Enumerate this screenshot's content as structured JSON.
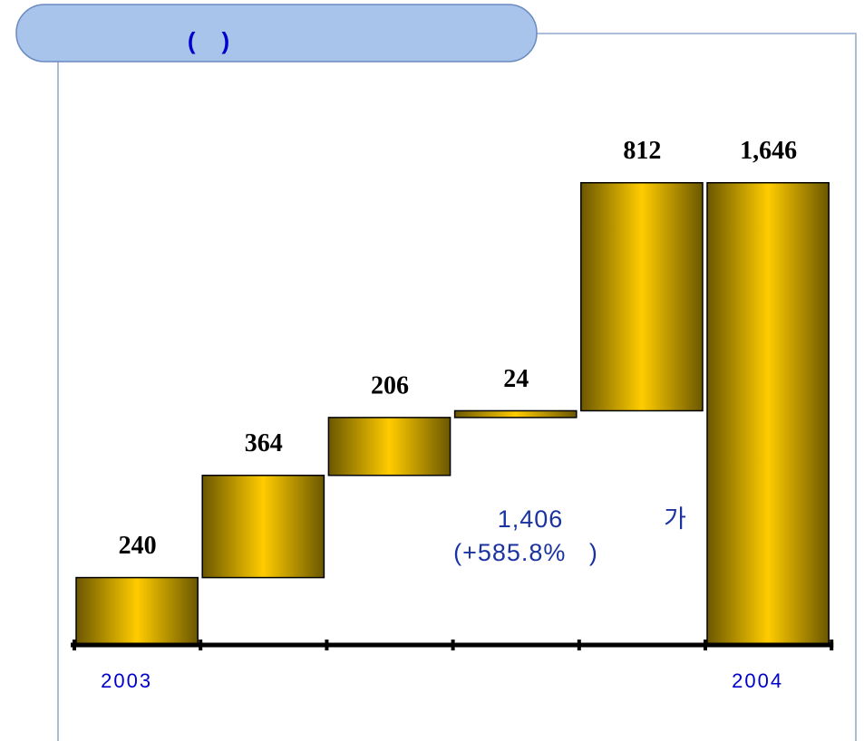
{
  "chart_data": {
    "type": "waterfall",
    "title": "(    )",
    "categories": [
      "2003",
      null,
      null,
      null,
      null,
      "2004"
    ],
    "values": [
      240,
      364,
      206,
      24,
      812,
      1646
    ],
    "value_labels": [
      "240",
      "364",
      "206",
      "24",
      "812",
      "1,646"
    ],
    "annotations": [
      "1,406",
      "가",
      "(+585.8%   )"
    ],
    "color": "#ffcc00"
  }
}
